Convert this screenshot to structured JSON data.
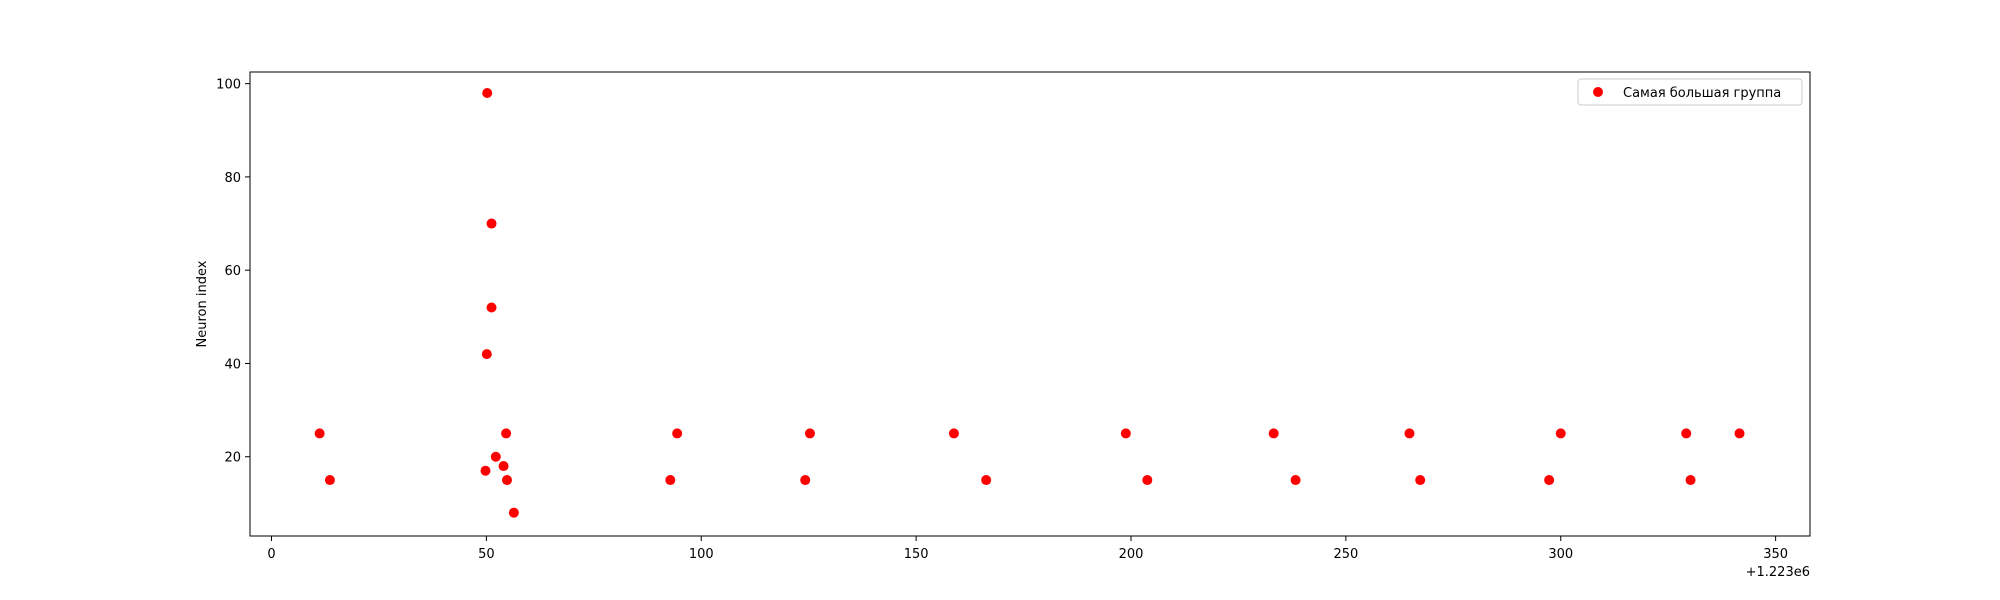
{
  "chart_data": {
    "type": "scatter",
    "title": "",
    "xlabel": "",
    "ylabel": "Neuron index",
    "x_offset_label": "+1.223e6",
    "xlim": [
      -5,
      358
    ],
    "ylim": [
      3,
      102.5
    ],
    "xticks": [
      0,
      50,
      100,
      150,
      200,
      250,
      300,
      350
    ],
    "yticks": [
      20,
      40,
      60,
      80,
      100
    ],
    "grid": false,
    "legend": "top-right",
    "series": [
      {
        "name": "Самая большая группа",
        "color": "#ff0000",
        "points": [
          {
            "x": 11.2,
            "y": 25
          },
          {
            "x": 13.6,
            "y": 15
          },
          {
            "x": 49.8,
            "y": 17
          },
          {
            "x": 50.1,
            "y": 42
          },
          {
            "x": 50.2,
            "y": 98
          },
          {
            "x": 51.2,
            "y": 70
          },
          {
            "x": 51.2,
            "y": 52
          },
          {
            "x": 52.2,
            "y": 20
          },
          {
            "x": 54.0,
            "y": 18
          },
          {
            "x": 54.6,
            "y": 25
          },
          {
            "x": 54.8,
            "y": 15
          },
          {
            "x": 56.4,
            "y": 8
          },
          {
            "x": 92.8,
            "y": 15
          },
          {
            "x": 94.4,
            "y": 25
          },
          {
            "x": 124.2,
            "y": 15
          },
          {
            "x": 125.3,
            "y": 25
          },
          {
            "x": 158.8,
            "y": 25
          },
          {
            "x": 166.3,
            "y": 15
          },
          {
            "x": 198.8,
            "y": 25
          },
          {
            "x": 203.8,
            "y": 15
          },
          {
            "x": 233.2,
            "y": 25
          },
          {
            "x": 238.3,
            "y": 15
          },
          {
            "x": 264.8,
            "y": 25
          },
          {
            "x": 267.3,
            "y": 15
          },
          {
            "x": 297.3,
            "y": 15
          },
          {
            "x": 300.0,
            "y": 25
          },
          {
            "x": 329.2,
            "y": 25
          },
          {
            "x": 330.2,
            "y": 15
          },
          {
            "x": 341.6,
            "y": 25
          }
        ]
      }
    ]
  }
}
